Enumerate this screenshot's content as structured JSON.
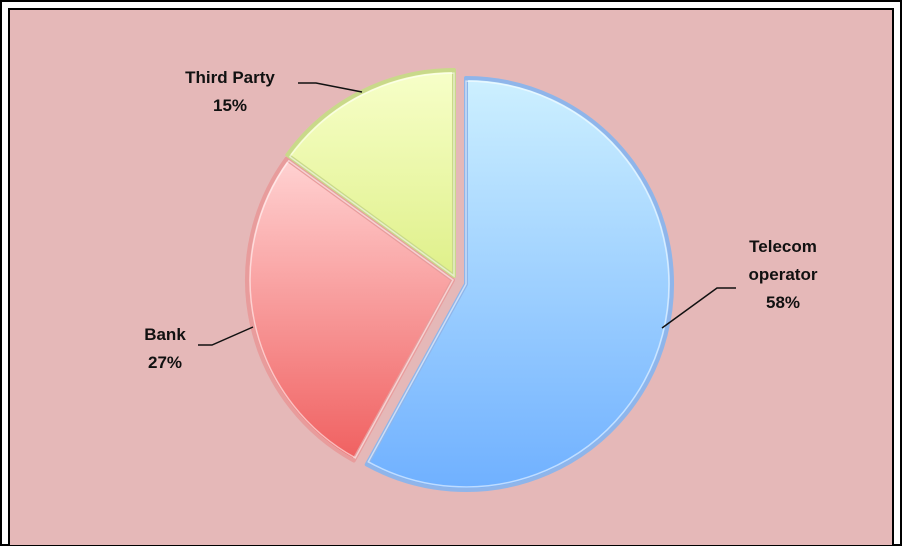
{
  "chart_data": {
    "type": "pie",
    "title": "",
    "slices": [
      {
        "label": "Telecom operator",
        "label_lines": [
          "Telecom",
          "operator"
        ],
        "value": 58,
        "value_label": "58%",
        "color_top": "#cdf0ff",
        "color_bottom": "#6fb0ff",
        "edge": "#8fb5ea"
      },
      {
        "label": "Bank",
        "label_lines": [
          "Bank"
        ],
        "value": 27,
        "value_label": "27%",
        "color_top": "#ffd2d2",
        "color_bottom": "#f06060",
        "edge": "#e89c9c"
      },
      {
        "label": "Third Party",
        "label_lines": [
          "Third Party"
        ],
        "value": 15,
        "value_label": "15%",
        "color_top": "#f7ffc9",
        "color_bottom": "#dff08a",
        "edge": "#c9d98a"
      }
    ],
    "background_color": "#e5b8b8",
    "legend": "none"
  }
}
